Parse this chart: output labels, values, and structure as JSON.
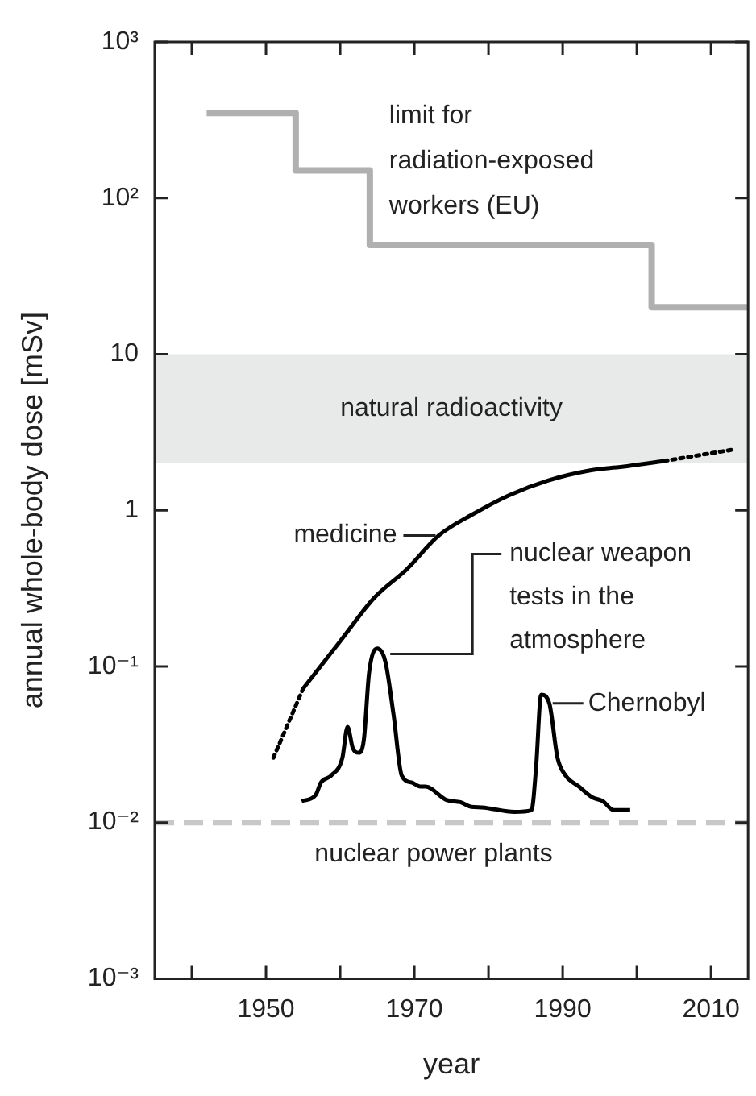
{
  "chart_data": {
    "type": "line",
    "xlabel": "year",
    "ylabel": "annual whole-body dose [mSv]",
    "log": "y",
    "grid": false,
    "legend": false,
    "marker": "none",
    "xlim": [
      1935,
      2015
    ],
    "xticks": [
      {
        "value": 1940,
        "label": null
      },
      1950,
      {
        "value": 1960,
        "label": null
      },
      1970,
      {
        "value": 1980,
        "label": null
      },
      1990,
      {
        "value": 2000,
        "label": null
      },
      2010
    ],
    "ylim": [
      0.001,
      1000
    ],
    "yticks": [
      {
        "value": 0.001,
        "label": "10⁻³"
      },
      {
        "value": 0.01,
        "label": "10⁻²"
      },
      {
        "value": 0.1,
        "label": "10⁻¹"
      },
      1,
      10,
      {
        "value": 100,
        "label": "10²"
      },
      {
        "value": 1000,
        "label": "10³"
      }
    ],
    "series": [
      {
        "type": "step",
        "color": "#b0b0b0",
        "line_style": "solid",
        "x": [
          1942,
          1954,
          1964,
          2002,
          2015
        ],
        "values": [
          350,
          150,
          50,
          20,
          20
        ]
      },
      {
        "color": "#000000",
        "line_style": "dotted",
        "x": [
          1951,
          1955
        ],
        "values": [
          0.026,
          0.072
        ]
      },
      {
        "color": "#000000",
        "line_style": "solid",
        "x": [
          1955,
          1960,
          1964.6,
          1969,
          1973.3,
          1978,
          1982.8,
          1988,
          1993.7,
          1998,
          2003.7
        ],
        "values": [
          0.072,
          0.145,
          0.275,
          0.42,
          0.69,
          0.95,
          1.25,
          1.55,
          1.8,
          1.9,
          2.07
        ]
      },
      {
        "color": "#000000",
        "line_style": "dotted",
        "x": [
          2003.7,
          2013
        ],
        "values": [
          2.07,
          2.45
        ]
      },
      {
        "color": "#000000",
        "line_style": "solid",
        "x": [
          1954.8,
          1956.7,
          1957.4,
          1958.8,
          1960.3,
          1961,
          1961.7,
          1962.5,
          1963.2,
          1963.9,
          1965,
          1966.1,
          1967.2,
          1968.3,
          1969.7,
          1970.8,
          1971.5,
          1974.4,
          1976.2,
          1977.7,
          1979.1,
          1983.5,
          1985.8,
          1986.4,
          1987.1,
          1988.2,
          1989.3,
          1990.4,
          1992.2,
          1994,
          1995.4,
          1996.9,
          1999.1
        ],
        "values": [
          0.0137,
          0.015,
          0.018,
          0.02,
          0.026,
          0.041,
          0.03,
          0.028,
          0.034,
          0.091,
          0.13,
          0.107,
          0.049,
          0.02,
          0.018,
          0.017,
          0.017,
          0.0139,
          0.0135,
          0.0126,
          0.0125,
          0.0117,
          0.012,
          0.022,
          0.066,
          0.058,
          0.026,
          0.02,
          0.017,
          0.0145,
          0.0137,
          0.012,
          0.012
        ]
      }
    ],
    "bands": [
      {
        "axis": "y",
        "from": 2,
        "to": 10,
        "label": "natural radioactivity",
        "color": "#e8e9e9"
      }
    ],
    "ref_lines": [
      {
        "axis": "y",
        "value": 0.01,
        "label": "nuclear power plants",
        "color": "#c8c8c8",
        "line_style": "dashed"
      }
    ],
    "annotations": [
      "limit for\nradiation-exposed\nworkers (EU)",
      {
        "text": "medicine",
        "x": 1973.3,
        "y": 0.69
      },
      {
        "text": "nuclear weapon\ntests in the\natmosphere",
        "x": 1966.1,
        "y": 0.12
      },
      {
        "text": "Chernobyl",
        "x": 1988,
        "y": 0.058
      }
    ]
  }
}
